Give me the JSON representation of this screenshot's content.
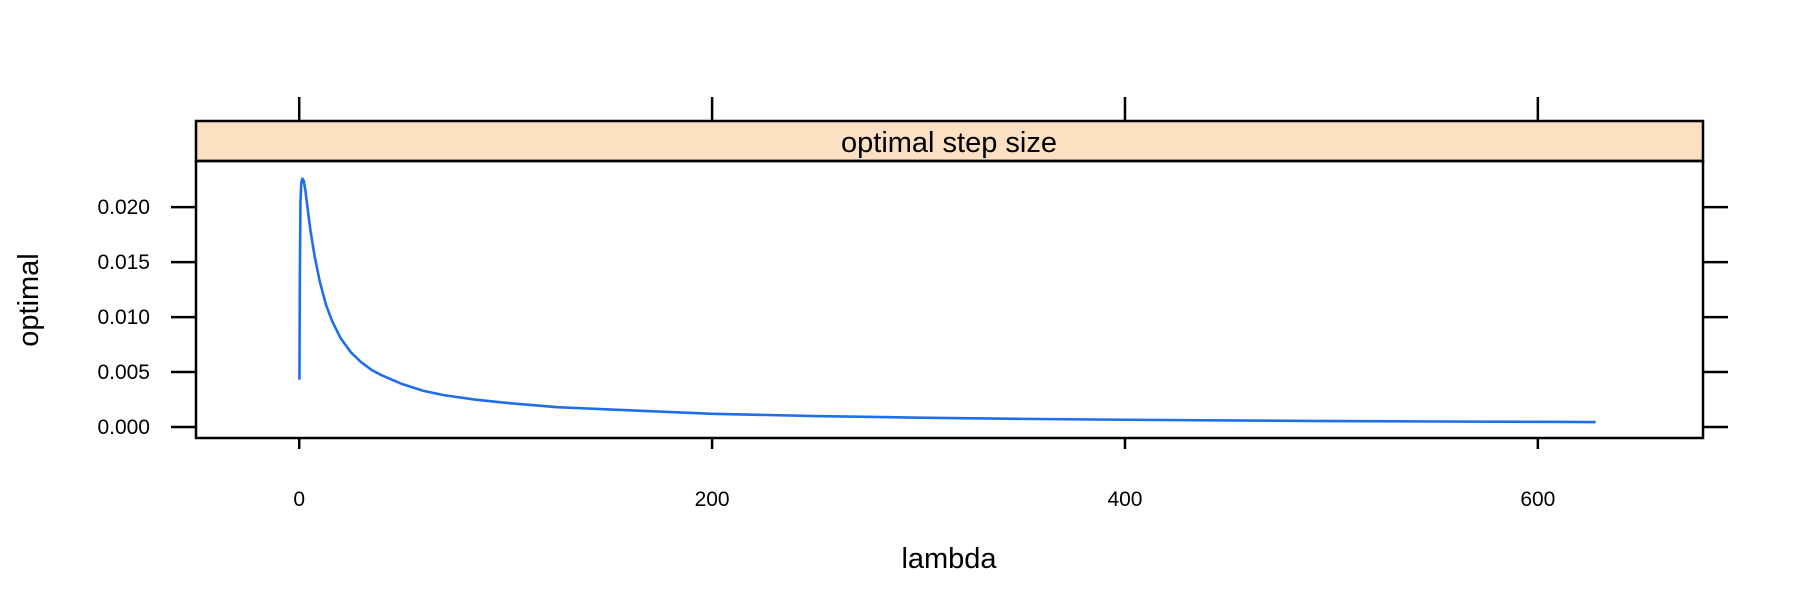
{
  "chart_data": {
    "type": "line",
    "title": "",
    "panel_strip": "optimal step size",
    "xlabel": "lambda",
    "ylabel": "optimal",
    "xlim": [
      -50,
      680
    ],
    "ylim": [
      -0.001,
      0.0242
    ],
    "x_ticks": [
      0,
      200,
      400,
      600
    ],
    "x_tick_labels": [
      "0",
      "200",
      "400",
      "600"
    ],
    "y_ticks": [
      0.0,
      0.005,
      0.01,
      0.015,
      0.02
    ],
    "y_tick_labels": [
      "0.000",
      "0.005",
      "0.010",
      "0.015",
      "0.020"
    ],
    "grid": false,
    "legend": "none",
    "colors": {
      "line": "#1f6fe8",
      "strip": "#fde0c2",
      "axis": "#000000"
    },
    "series": [
      {
        "x": [
          0.1,
          0.3,
          0.6,
          1.0,
          1.5,
          2.2,
          3.0,
          4.0,
          5.5,
          7.5,
          10,
          13,
          16,
          20,
          25,
          30,
          35,
          40,
          50,
          60,
          70,
          85,
          100,
          125,
          150,
          200,
          250,
          300,
          350,
          400,
          450,
          500,
          550,
          600,
          628
        ],
        "y": [
          0.0043,
          0.0135,
          0.0205,
          0.0222,
          0.0226,
          0.0224,
          0.0215,
          0.02,
          0.0178,
          0.0155,
          0.0132,
          0.0111,
          0.0096,
          0.0081,
          0.0068,
          0.0059,
          0.0052,
          0.0047,
          0.0039,
          0.0033,
          0.0029,
          0.0025,
          0.0022,
          0.0018,
          0.0016,
          0.0012,
          0.001,
          0.00085,
          0.00074,
          0.00066,
          0.0006,
          0.00054,
          0.0005,
          0.00047,
          0.00045
        ]
      }
    ]
  }
}
